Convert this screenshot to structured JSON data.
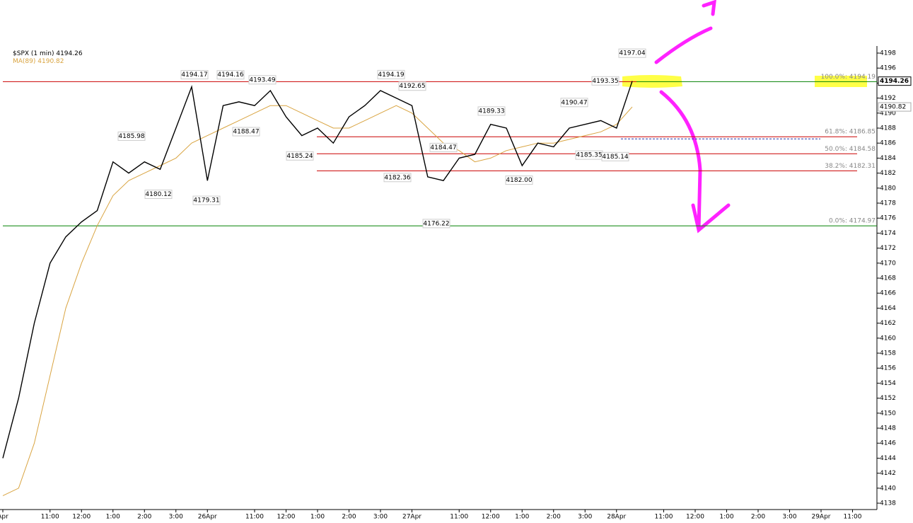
{
  "chart_data": {
    "type": "line",
    "categories": [
      "Apr",
      null,
      null,
      "11:00",
      null,
      "12:00",
      null,
      "1:00",
      null,
      "2:00",
      null,
      "3:00",
      null,
      "26Apr",
      null,
      null,
      "11:00",
      null,
      "12:00",
      null,
      "1:00",
      null,
      "2:00",
      null,
      "3:00",
      null,
      "27Apr",
      null,
      null,
      "11:00",
      null,
      "12:00",
      null,
      "1:00",
      null,
      "2:00",
      null,
      "3:00",
      null,
      "28Apr",
      null,
      null,
      "11:00",
      null,
      "12:00",
      null,
      "1:00",
      null,
      "2:00",
      null,
      "3:00",
      null,
      "29Apr",
      null,
      "11:00",
      null
    ],
    "series": [
      {
        "name": "$SPX (1 min)",
        "color": "#000000",
        "last_value": 4194.26,
        "values": [
          4144,
          4152,
          4162,
          4170,
          4173.5,
          4175.5,
          4177,
          4183.5,
          4182,
          4183.5,
          4182.5,
          4188,
          4193.5,
          4181,
          4191,
          4191.5,
          4191,
          4193,
          4189.5,
          4187,
          4188,
          4186,
          4189.5,
          4191,
          4193,
          4192,
          4191,
          4181.5,
          4181,
          4184,
          4184.5,
          4188.5,
          4188,
          4183,
          4186,
          4185.5,
          4188,
          4188.5,
          4189,
          4188,
          4194.26,
          null,
          null,
          null,
          null,
          null,
          null,
          null,
          null,
          null,
          null,
          null,
          null,
          null,
          null,
          null
        ]
      },
      {
        "name": "MA(89)",
        "color": "#d9a441",
        "last_value": 4190.82,
        "values": [
          4139,
          4140,
          4146,
          4155,
          4164,
          4170,
          4175,
          4179,
          4181,
          4182,
          4183,
          4184,
          4186,
          4187,
          4188,
          4189,
          4190,
          4191,
          4191,
          4190,
          4189,
          4188,
          4188,
          4189,
          4190,
          4191,
          4190,
          4188,
          4186,
          4185,
          4183.5,
          4184,
          4185,
          4185.5,
          4186,
          4186,
          4186.5,
          4187,
          4187.5,
          4188.5,
          4190.82,
          null,
          null,
          null,
          null,
          null,
          null,
          null,
          null,
          null,
          null,
          null,
          null,
          null,
          null,
          null
        ]
      }
    ],
    "ylim": [
      4137,
      4199
    ],
    "yticks": [
      4138,
      4140,
      4142,
      4144,
      4146,
      4148,
      4150,
      4152,
      4154,
      4156,
      4158,
      4160,
      4162,
      4164,
      4166,
      4168,
      4170,
      4172,
      4174,
      4176,
      4178,
      4180,
      4182,
      4184,
      4186,
      4188,
      4190,
      4192,
      4194,
      4196,
      4198
    ],
    "grid": false,
    "annotations": [
      4194.17,
      4194.16,
      4193.49,
      4185.98,
      4188.47,
      4180.12,
      4179.31,
      4185.24,
      4194.19,
      4192.65,
      4182.36,
      4184.47,
      4176.22,
      4189.33,
      {
        "value": 4182,
        "label": "4182.00"
      },
      4190.47,
      4185.35,
      4185.14,
      4193.35,
      4197.04
    ],
    "levels": [
      {
        "label": "100.0%: 4194.19",
        "value": 4194.19,
        "color": "#cc0000"
      },
      {
        "label": "61.8%: 4186.85",
        "value": 4186.85,
        "color": "#cc0000"
      },
      {
        "label": "50.0%: 4184.58",
        "value": 4184.58,
        "color": "#cc0000"
      },
      {
        "label": "38.2%: 4182.31",
        "value": 4182.31,
        "color": "#cc0000"
      },
      {
        "label": "0.0%: 4174.97",
        "value": 4174.97,
        "color": "#008000"
      }
    ]
  }
}
